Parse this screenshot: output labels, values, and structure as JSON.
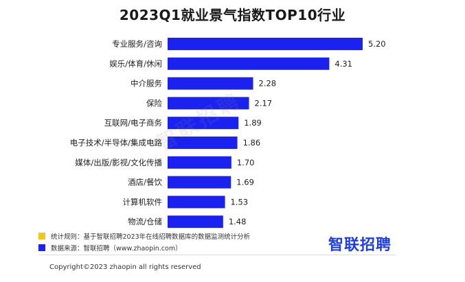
{
  "chart_data": {
    "type": "bar",
    "orientation": "horizontal",
    "title": "2023Q1就业景气指数TOP10行业",
    "categories": [
      "专业服务/咨询",
      "娱乐/体育/休闲",
      "中介服务",
      "保险",
      "互联网/电子商务",
      "电子技术/半导体/集成电路",
      "媒体/出版/影视/文化传播",
      "酒店/餐饮",
      "计算机软件",
      "物流/仓储"
    ],
    "values": [
      5.2,
      4.31,
      2.28,
      2.17,
      1.89,
      1.86,
      1.7,
      1.69,
      1.53,
      1.48
    ],
    "value_labels": [
      "5.20",
      "4.31",
      "2.28",
      "2.17",
      "1.89",
      "1.86",
      "1.70",
      "1.69",
      "1.53",
      "1.48"
    ],
    "xlim": [
      0,
      5.2
    ],
    "xlabel": "",
    "ylabel": "",
    "grid": false,
    "bar_color": "#1b22f0"
  },
  "watermark": "智联招聘",
  "legend": [
    {
      "color": "#f5c518",
      "text": "统计规则：基于智联招聘2023年在线招聘数据库的数据监测统计分析"
    },
    {
      "color": "#1b22f0",
      "text": "数据来源：智联招聘（www.zhaopin.com）"
    }
  ],
  "brand": "智联招聘",
  "copyright": "Copyright©2023 zhaopin all rights reserved"
}
